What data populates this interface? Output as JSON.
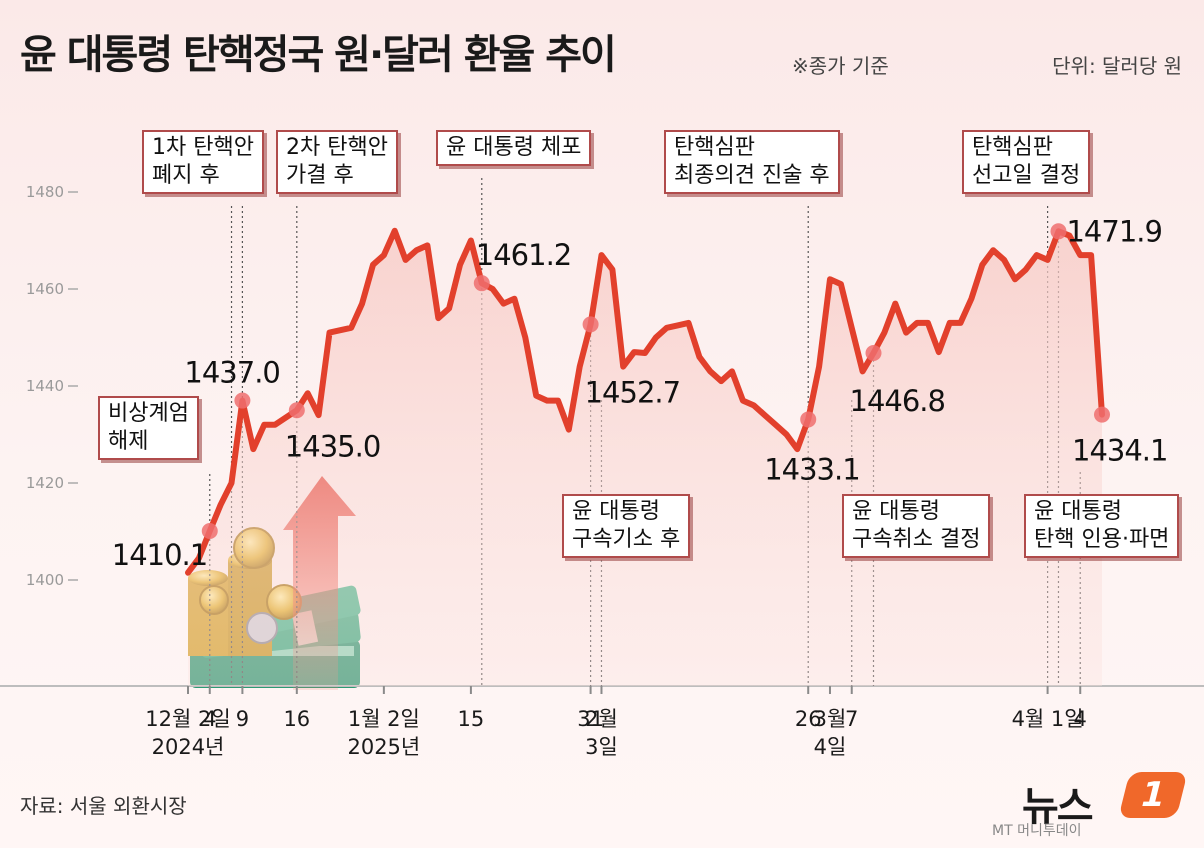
{
  "title": "윤 대통령 탄핵정국 원·달러 환율 추이",
  "note": "※종가 기준",
  "unit": "단위: 달러당 원",
  "source": "자료: 서울 외환시장",
  "logo": {
    "main": "뉴스",
    "badge": "1",
    "sub": "MT 머니투데이"
  },
  "colors": {
    "line": "#e2402c",
    "marker": "#ef6e6e",
    "box_border": "#b04b4b"
  },
  "icons": [
    "coins-stack-icon",
    "money-bundle-icon",
    "rising-arrow-icon"
  ],
  "annotations": [
    {
      "lines": [
        "비상계엄",
        "해제"
      ]
    },
    {
      "lines": [
        "1차 탄핵안",
        "폐지 후"
      ]
    },
    {
      "lines": [
        "2차 탄핵안",
        "가결 후"
      ]
    },
    {
      "lines": [
        "윤 대통령 체포"
      ]
    },
    {
      "lines": [
        "윤 대통령",
        "구속기소 후"
      ]
    },
    {
      "lines": [
        "탄핵심판",
        "최종의견 진술 후"
      ]
    },
    {
      "lines": [
        "윤 대통령",
        "구속취소 결정"
      ]
    },
    {
      "lines": [
        "탄핵심판",
        "선고일 결정"
      ]
    },
    {
      "lines": [
        "윤 대통령",
        "탄핵 인용·파면"
      ]
    }
  ],
  "chart_data": {
    "type": "line",
    "ylim": [
      1400,
      1480
    ],
    "yticks": [
      1400,
      1420,
      1440,
      1460,
      1480
    ],
    "xtick_labels": [
      {
        "x": 0,
        "lines": [
          "12월 2일",
          "2024년"
        ]
      },
      {
        "x": 2,
        "lines": [
          "4"
        ]
      },
      {
        "x": 5,
        "lines": [
          "9"
        ]
      },
      {
        "x": 10,
        "lines": [
          "16"
        ]
      },
      {
        "x": 18,
        "lines": [
          "1월 2일",
          "2025년"
        ]
      },
      {
        "x": 26,
        "lines": [
          "15"
        ]
      },
      {
        "x": 37,
        "lines": [
          "31"
        ]
      },
      {
        "x": 38,
        "lines": [
          "2월",
          "3일"
        ]
      },
      {
        "x": 57,
        "lines": [
          "26"
        ]
      },
      {
        "x": 59,
        "lines": [
          "3월",
          "4일"
        ]
      },
      {
        "x": 61,
        "lines": [
          "7"
        ]
      },
      {
        "x": 79,
        "lines": [
          "4월 1일"
        ]
      },
      {
        "x": 82,
        "lines": [
          "4"
        ]
      }
    ],
    "series": [
      {
        "values": [
          1401.5,
          1404.5,
          1410.1,
          1415.5,
          1420,
          1437.0,
          1427,
          1432,
          1432,
          1433.5,
          1435.0,
          1438.5,
          1434,
          1451,
          1451.5,
          1452,
          1457,
          1465,
          1467,
          1472,
          1466,
          1468,
          1469,
          1454,
          1456,
          1465,
          1470,
          1461.2,
          1460,
          1457,
          1458,
          1450,
          1438,
          1437,
          1437,
          1431,
          1444,
          1452.7,
          1467,
          1464,
          1444,
          1447,
          1446.8,
          1450,
          1452,
          1452.5,
          1453,
          1446,
          1443,
          1441,
          1443,
          1437,
          1436,
          1434,
          1432,
          1430,
          1427,
          1433.1,
          1444,
          1462,
          1461,
          1452,
          1443,
          1446.8,
          1451,
          1457,
          1451,
          1453,
          1453,
          1447,
          1453,
          1453,
          1458,
          1465,
          1468,
          1466,
          1462,
          1464,
          1467,
          1466,
          1471.9,
          1471,
          1467,
          1467,
          1434.1
        ]
      }
    ],
    "labeled_points": [
      {
        "x": 2,
        "value": "1410.1"
      },
      {
        "x": 5,
        "value": "1437.0"
      },
      {
        "x": 10,
        "value": "1435.0"
      },
      {
        "x": 27,
        "value": "1461.2"
      },
      {
        "x": 37,
        "value": "1452.7"
      },
      {
        "x": 57,
        "value": "1433.1"
      },
      {
        "x": 63,
        "value": "1446.8"
      },
      {
        "x": 80,
        "value": "1471.9"
      },
      {
        "x": 84,
        "value": "1434.1"
      }
    ]
  }
}
